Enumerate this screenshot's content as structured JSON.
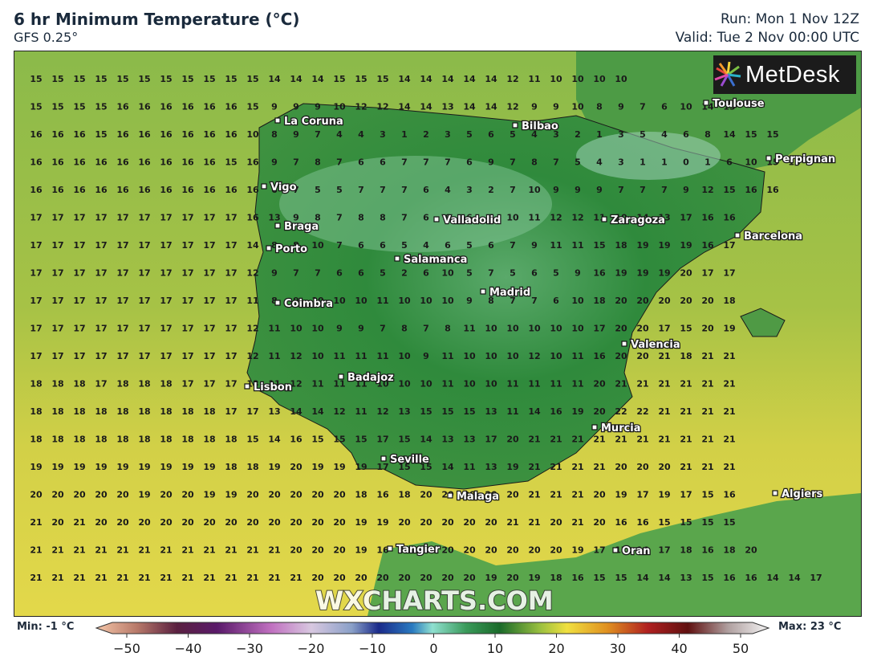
{
  "header": {
    "title": "6 hr Minimum Temperature (°C)",
    "model": "GFS 0.25°",
    "run": "Run: Mon 1 Nov 12Z",
    "valid": "Valid: Tue 2 Nov 00:00 UTC"
  },
  "brand": {
    "logo_text": "MetDesk",
    "watermark": "WXCHARTS.COM"
  },
  "legend": {
    "min_label": "Min: -1 °C",
    "max_label": "Max: 23 °C",
    "ticks": [
      "−50",
      "−40",
      "−30",
      "−20",
      "−10",
      "0",
      "10",
      "20",
      "30",
      "40",
      "50"
    ]
  },
  "cities": [
    {
      "name": "La Coruna"
    },
    {
      "name": "Bilbao"
    },
    {
      "name": "Toulouse"
    },
    {
      "name": "Perpignan"
    },
    {
      "name": "Vigo"
    },
    {
      "name": "Valladolid"
    },
    {
      "name": "Zaragoza"
    },
    {
      "name": "Braga"
    },
    {
      "name": "Barcelona"
    },
    {
      "name": "Porto"
    },
    {
      "name": "Salamanca"
    },
    {
      "name": "Madrid"
    },
    {
      "name": "Coimbra"
    },
    {
      "name": "Valencia"
    },
    {
      "name": "Lisbon"
    },
    {
      "name": "Badajoz"
    },
    {
      "name": "Murcia"
    },
    {
      "name": "Seville"
    },
    {
      "name": "Malaga"
    },
    {
      "name": "Algiers"
    },
    {
      "name": "Tangier"
    },
    {
      "name": "Oran"
    }
  ],
  "grid_values": [
    [
      15,
      15,
      15,
      15,
      15,
      15,
      15,
      15,
      15,
      15,
      15,
      14,
      14,
      14,
      15,
      15,
      15,
      14,
      14,
      14,
      14,
      14,
      12,
      11,
      10,
      10,
      10,
      10,
      null,
      null,
      null,
      null,
      null
    ],
    [
      15,
      15,
      15,
      15,
      16,
      16,
      16,
      16,
      16,
      16,
      15,
      9,
      9,
      9,
      10,
      12,
      12,
      14,
      14,
      13,
      14,
      14,
      12,
      9,
      9,
      10,
      8,
      9,
      7,
      6,
      10,
      14,
      13
    ],
    [
      16,
      16,
      16,
      15,
      16,
      16,
      16,
      16,
      16,
      16,
      10,
      8,
      9,
      7,
      4,
      4,
      3,
      1,
      2,
      3,
      5,
      6,
      5,
      4,
      3,
      2,
      1,
      3,
      5,
      4,
      6,
      8,
      14,
      15,
      15
    ],
    [
      16,
      16,
      16,
      16,
      16,
      16,
      16,
      16,
      16,
      15,
      16,
      9,
      7,
      8,
      7,
      6,
      6,
      7,
      7,
      7,
      6,
      9,
      7,
      8,
      7,
      5,
      4,
      3,
      1,
      1,
      0,
      1,
      6,
      10,
      15,
      16
    ],
    [
      16,
      16,
      16,
      16,
      16,
      16,
      16,
      16,
      16,
      16,
      16,
      6,
      7,
      5,
      5,
      7,
      7,
      7,
      6,
      4,
      3,
      2,
      7,
      10,
      9,
      9,
      9,
      7,
      7,
      7,
      9,
      12,
      15,
      16,
      16
    ],
    [
      17,
      17,
      17,
      17,
      17,
      17,
      17,
      17,
      17,
      17,
      16,
      13,
      9,
      8,
      7,
      8,
      8,
      7,
      6,
      6,
      6,
      6,
      10,
      11,
      12,
      12,
      11,
      10,
      14,
      13,
      17,
      16,
      16
    ],
    [
      17,
      17,
      17,
      17,
      17,
      17,
      17,
      17,
      17,
      17,
      14,
      8,
      8,
      10,
      7,
      6,
      6,
      5,
      4,
      6,
      5,
      6,
      7,
      9,
      11,
      11,
      15,
      18,
      19,
      19,
      19,
      16,
      17
    ],
    [
      17,
      17,
      17,
      17,
      17,
      17,
      17,
      17,
      17,
      17,
      12,
      9,
      7,
      7,
      6,
      6,
      5,
      2,
      6,
      10,
      5,
      7,
      5,
      6,
      5,
      9,
      16,
      19,
      19,
      19,
      20,
      17,
      17
    ],
    [
      17,
      17,
      17,
      17,
      17,
      17,
      17,
      17,
      17,
      17,
      11,
      8,
      9,
      10,
      10,
      10,
      11,
      10,
      10,
      10,
      9,
      8,
      7,
      7,
      6,
      10,
      18,
      20,
      20,
      20,
      20,
      20,
      18
    ],
    [
      17,
      17,
      17,
      17,
      17,
      17,
      17,
      17,
      17,
      17,
      12,
      11,
      10,
      10,
      9,
      9,
      7,
      8,
      7,
      8,
      11,
      10,
      10,
      10,
      10,
      10,
      17,
      20,
      20,
      17,
      15,
      20,
      19
    ],
    [
      17,
      17,
      17,
      17,
      17,
      17,
      17,
      17,
      17,
      17,
      12,
      11,
      12,
      10,
      11,
      11,
      11,
      10,
      9,
      11,
      10,
      10,
      10,
      12,
      10,
      11,
      16,
      20,
      20,
      21,
      18,
      21,
      21
    ],
    [
      18,
      18,
      18,
      17,
      18,
      18,
      18,
      17,
      17,
      17,
      13,
      11,
      12,
      11,
      11,
      11,
      10,
      10,
      10,
      11,
      10,
      10,
      11,
      11,
      11,
      11,
      20,
      21,
      21,
      21,
      21,
      21,
      21
    ],
    [
      18,
      18,
      18,
      18,
      18,
      18,
      18,
      18,
      18,
      17,
      17,
      13,
      14,
      14,
      12,
      11,
      12,
      13,
      15,
      15,
      15,
      13,
      11,
      14,
      16,
      19,
      20,
      22,
      22,
      21,
      21,
      21,
      21
    ],
    [
      18,
      18,
      18,
      18,
      18,
      18,
      18,
      18,
      18,
      18,
      15,
      14,
      16,
      15,
      15,
      15,
      17,
      15,
      14,
      13,
      13,
      17,
      20,
      21,
      21,
      21,
      21,
      21,
      21,
      21,
      21,
      21,
      21
    ],
    [
      19,
      19,
      19,
      19,
      19,
      19,
      19,
      19,
      19,
      18,
      18,
      19,
      20,
      19,
      19,
      19,
      17,
      15,
      15,
      14,
      11,
      13,
      19,
      21,
      21,
      21,
      21,
      20,
      20,
      20,
      21,
      21,
      21
    ],
    [
      20,
      20,
      20,
      20,
      20,
      19,
      20,
      20,
      19,
      19,
      20,
      20,
      20,
      20,
      20,
      18,
      16,
      18,
      20,
      20,
      20,
      20,
      20,
      21,
      21,
      21,
      20,
      19,
      17,
      19,
      17,
      15,
      16
    ],
    [
      21,
      20,
      21,
      20,
      20,
      20,
      20,
      20,
      20,
      20,
      20,
      20,
      20,
      20,
      20,
      19,
      19,
      20,
      20,
      20,
      20,
      20,
      21,
      21,
      20,
      21,
      20,
      16,
      16,
      15,
      15,
      15,
      15
    ],
    [
      21,
      21,
      21,
      21,
      21,
      21,
      21,
      21,
      21,
      21,
      21,
      21,
      20,
      20,
      20,
      19,
      16,
      20,
      20,
      20,
      20,
      20,
      20,
      20,
      20,
      19,
      17,
      17,
      16,
      17,
      18,
      16,
      18,
      20
    ],
    [
      21,
      21,
      21,
      21,
      21,
      21,
      21,
      21,
      21,
      21,
      21,
      21,
      21,
      20,
      20,
      20,
      20,
      20,
      20,
      20,
      20,
      19,
      20,
      19,
      18,
      16,
      15,
      15,
      14,
      14,
      13,
      15,
      16,
      16,
      14,
      14,
      17
    ]
  ],
  "colors": {
    "sea_yellow": "#d9d447",
    "land_green": "#2f8a3c",
    "land_dark": "#1f7030",
    "text": "#1a2a3c"
  }
}
